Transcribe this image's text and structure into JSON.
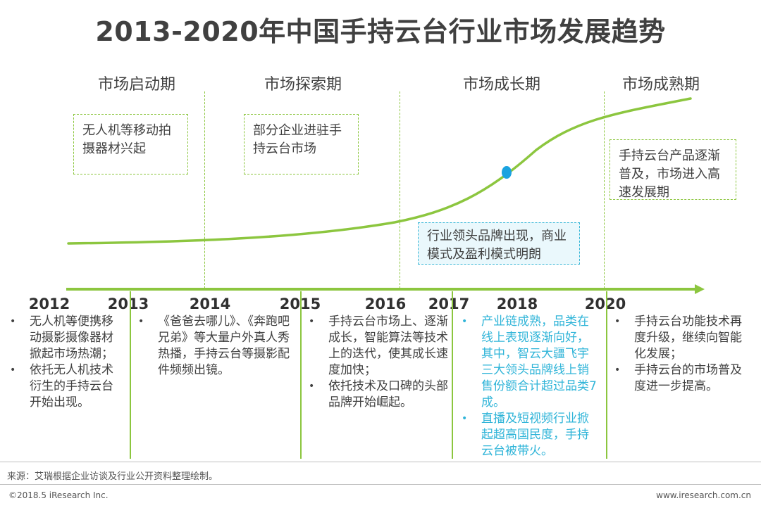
{
  "title": "2013-2020年中国手持云台行业市场发展趋势",
  "phases": [
    "市场启动期",
    "市场探索期",
    "市场成长期",
    "市场成熟期"
  ],
  "phase_notes": {
    "startup": "无人机等移动拍摄器材兴起",
    "explore": "部分企业进驻手持云台市场",
    "growth": "行业领头品牌出现，商业模式及盈利模式明朗",
    "mature": "手持云台产品逐渐普及，市场进入高速发展期"
  },
  "years": [
    "2012",
    "2013",
    "2014",
    "2015",
    "2016",
    "2017",
    "2018",
    "2020"
  ],
  "events": {
    "c2012": [
      "无人机等便携移动摄影摄像器材掀起市场热潮；",
      "依托无人机技术衍生的手持云台开始出现。"
    ],
    "c2014": [
      "《爸爸去哪儿》、《奔跑吧兄弟》等大量户外真人秀热播，手持云台等摄影配件频频出镜。"
    ],
    "c2016": [
      "手持云台市场上、逐渐成长，智能算法等技术上的迭代，使其成长速度加快；",
      "依托技术及口碑的头部品牌开始崛起。"
    ],
    "c2018": [
      "产业链成熟，品类在线上表现逐渐向好，其中，智云大疆飞宇三大领头品牌线上销售份额合计超过品类7成。",
      "直播及短视频行业掀起超高国民度，手持云台被带火。"
    ],
    "c2020": [
      "手持云台功能技术再度升级，继续向智能化发展；",
      "手持云台的市场普及度进一步提高。"
    ]
  },
  "colors": {
    "green": "#8cc63f",
    "blue": "#2fb4d8",
    "dot": "#1aa3e0"
  },
  "footer": {
    "source": "来源：艾瑞根据企业访谈及行业公开资料整理绘制。",
    "copyright": "©2018.5 iResearch Inc.",
    "website": "www.iresearch.com.cn"
  }
}
